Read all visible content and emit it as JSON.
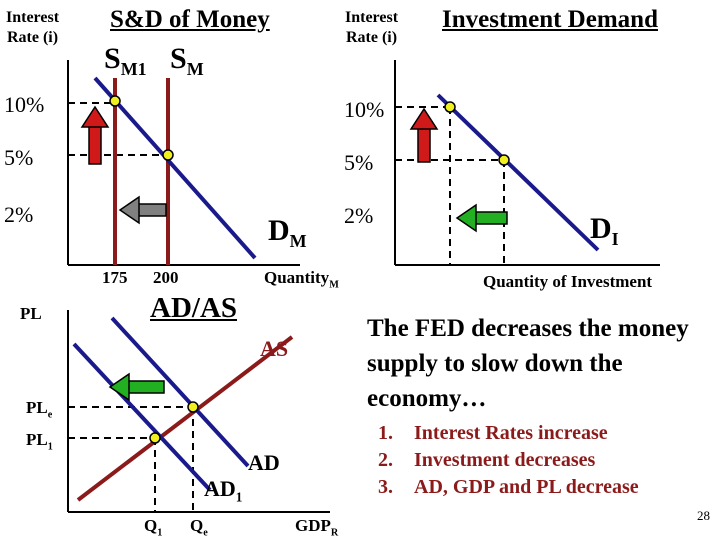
{
  "money_market": {
    "y_axis_label_line1": "Interest",
    "y_axis_label_line2": "Rate (i)",
    "title": "S&D of Money",
    "supply1_label": "S",
    "supply1_sub": "M1",
    "supply2_label": "S",
    "supply2_sub": "M",
    "rates": [
      "10%",
      "5%",
      "2%"
    ],
    "demand_label": "D",
    "demand_sub": "M",
    "quantities": [
      "175",
      "200"
    ],
    "x_axis_label": "Quantity",
    "x_axis_sub": "M"
  },
  "investment": {
    "y_axis_label_line1": "Interest",
    "y_axis_label_line2": "Rate (i)",
    "title": "Investment Demand",
    "rates": [
      "10%",
      "5%",
      "2%"
    ],
    "demand_label": "D",
    "demand_sub": "I",
    "x_axis_label": "Quantity of Investment"
  },
  "adas": {
    "y_axis_label": "PL",
    "title": "AD/AS",
    "as_label": "AS",
    "ple_label": "PL",
    "ple_sub": "e",
    "pl1_label": "PL",
    "pl1_sub": "1",
    "ad_label": "AD",
    "ad1_label": "AD",
    "ad1_sub": "1",
    "q1_label": "Q",
    "q1_sub": "1",
    "qe_label": "Q",
    "qe_sub": "e",
    "x_axis_label": "GDP",
    "x_axis_sub": "R"
  },
  "explanation": {
    "headline": "The FED decreases the money supply to slow down the economy…",
    "steps": [
      {
        "num": "1.",
        "text": "Interest Rates increase"
      },
      {
        "num": "2.",
        "text": "Investment decreases"
      },
      {
        "num": "3.",
        "text": "AD, GDP and PL decrease"
      }
    ]
  },
  "page_number": "28",
  "colors": {
    "demand": "#1a1a8c",
    "supply": "#8b1a1a",
    "up_arrow": "#d01a1a",
    "gray_arrow": "#808080",
    "green_arrow": "#22b022",
    "point": "#f0f020"
  }
}
